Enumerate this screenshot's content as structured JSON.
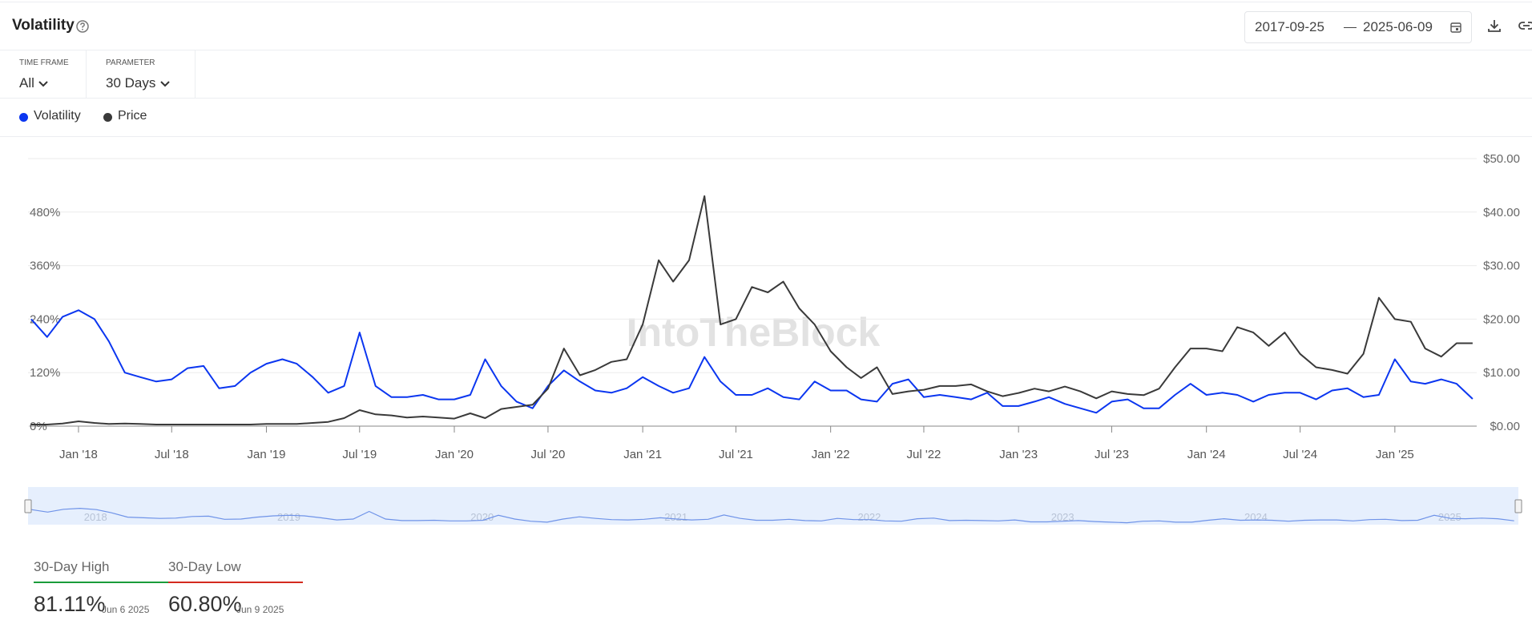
{
  "header": {
    "title": "Volatility"
  },
  "filters": [
    {
      "label": "TIME FRAME",
      "value": "All"
    },
    {
      "label": "PARAMETER",
      "value": "30 Days"
    }
  ],
  "watermark": "IntoTheBlock",
  "navigator": {
    "labels": [
      "2018",
      "2019",
      "2020",
      "2021",
      "2022",
      "2023",
      "2024",
      "2025"
    ]
  },
  "stats": [
    {
      "label": "30-Day High",
      "value": "81.11%",
      "date": "Jun 6 2025",
      "color": "#1a9c3a"
    },
    {
      "label": "30-Day Low",
      "value": "60.80%",
      "date": "Jun 9 2025",
      "color": "#d42a1e"
    }
  ],
  "chart_data": {
    "type": "line",
    "xlim": [
      "2017-09-25",
      "2025-06-09"
    ],
    "xticks": [
      {
        "value": "2018-01",
        "label": "Jan '18"
      },
      {
        "value": "2018-07",
        "label": "Jul '18"
      },
      {
        "value": "2019-01",
        "label": "Jan '19"
      },
      {
        "value": "2019-07",
        "label": "Jul '19"
      },
      {
        "value": "2020-01",
        "label": "Jan '20"
      },
      {
        "value": "2020-07",
        "label": "Jul '20"
      },
      {
        "value": "2021-01",
        "label": "Jan '21"
      },
      {
        "value": "2021-07",
        "label": "Jul '21"
      },
      {
        "value": "2022-01",
        "label": "Jan '22"
      },
      {
        "value": "2022-07",
        "label": "Jul '22"
      },
      {
        "value": "2023-01",
        "label": "Jan '23"
      },
      {
        "value": "2023-07",
        "label": "Jul '23"
      },
      {
        "value": "2024-01",
        "label": "Jan '24"
      },
      {
        "value": "2024-07",
        "label": "Jul '24"
      },
      {
        "value": "2025-01",
        "label": "Jan '25"
      }
    ],
    "ylim": [
      0,
      600
    ],
    "yticks": [
      {
        "value": 0,
        "label": "0%"
      },
      {
        "value": 120,
        "label": "120%"
      },
      {
        "value": 240,
        "label": "240%"
      },
      {
        "value": 360,
        "label": "360%"
      },
      {
        "value": 480,
        "label": "480%"
      }
    ],
    "y2lim": [
      0,
      50
    ],
    "y2ticks": [
      {
        "value": 0,
        "label": "$0.00"
      },
      {
        "value": 10,
        "label": "$10.00"
      },
      {
        "value": 20,
        "label": "$20.00"
      },
      {
        "value": 30,
        "label": "$30.00"
      },
      {
        "value": 40,
        "label": "$40.00"
      },
      {
        "value": 50,
        "label": "$50.00"
      }
    ],
    "grid": true,
    "x": [
      "2017-10",
      "2017-11",
      "2017-12",
      "2018-01",
      "2018-02",
      "2018-03",
      "2018-04",
      "2018-05",
      "2018-06",
      "2018-07",
      "2018-08",
      "2018-09",
      "2018-10",
      "2018-11",
      "2018-12",
      "2019-01",
      "2019-02",
      "2019-03",
      "2019-04",
      "2019-05",
      "2019-06",
      "2019-07",
      "2019-08",
      "2019-09",
      "2019-10",
      "2019-11",
      "2019-12",
      "2020-01",
      "2020-02",
      "2020-03",
      "2020-04",
      "2020-05",
      "2020-06",
      "2020-07",
      "2020-08",
      "2020-09",
      "2020-10",
      "2020-11",
      "2020-12",
      "2021-01",
      "2021-02",
      "2021-03",
      "2021-04",
      "2021-05",
      "2021-06",
      "2021-07",
      "2021-08",
      "2021-09",
      "2021-10",
      "2021-11",
      "2021-12",
      "2022-01",
      "2022-02",
      "2022-03",
      "2022-04",
      "2022-05",
      "2022-06",
      "2022-07",
      "2022-08",
      "2022-09",
      "2022-10",
      "2022-11",
      "2022-12",
      "2023-01",
      "2023-02",
      "2023-03",
      "2023-04",
      "2023-05",
      "2023-06",
      "2023-07",
      "2023-08",
      "2023-09",
      "2023-10",
      "2023-11",
      "2023-12",
      "2024-01",
      "2024-02",
      "2024-03",
      "2024-04",
      "2024-05",
      "2024-06",
      "2024-07",
      "2024-08",
      "2024-09",
      "2024-10",
      "2024-11",
      "2024-12",
      "2025-01",
      "2025-02",
      "2025-03",
      "2025-04",
      "2025-05",
      "2025-06"
    ],
    "series": [
      {
        "name": "Volatility",
        "color": "#0b36f0",
        "values": [
          240,
          200,
          245,
          260,
          240,
          190,
          120,
          110,
          100,
          105,
          130,
          135,
          85,
          90,
          120,
          140,
          150,
          140,
          110,
          75,
          90,
          210,
          90,
          65,
          65,
          70,
          60,
          60,
          70,
          150,
          90,
          55,
          40,
          90,
          125,
          100,
          80,
          75,
          85,
          110,
          90,
          75,
          85,
          155,
          100,
          70,
          70,
          85,
          65,
          60,
          100,
          80,
          80,
          60,
          55,
          95,
          105,
          65,
          70,
          65,
          60,
          75,
          45,
          45,
          55,
          65,
          50,
          40,
          30,
          55,
          60,
          40,
          40,
          70,
          95,
          70,
          75,
          70,
          55,
          70,
          75,
          75,
          60,
          80,
          85,
          65,
          70,
          150,
          100,
          95,
          105,
          95,
          61
        ]
      },
      {
        "name": "Price",
        "color": "#3a3a3a",
        "axis": "y2",
        "values": [
          0.3,
          0.3,
          0.5,
          0.9,
          0.6,
          0.4,
          0.5,
          0.4,
          0.3,
          0.3,
          0.3,
          0.3,
          0.3,
          0.3,
          0.3,
          0.4,
          0.4,
          0.4,
          0.6,
          0.8,
          1.5,
          3.0,
          2.2,
          2.0,
          1.6,
          1.8,
          1.6,
          1.4,
          2.4,
          1.5,
          3.2,
          3.6,
          4.0,
          7.0,
          14.5,
          9.5,
          10.5,
          12.0,
          12.5,
          19,
          31,
          27,
          31,
          43,
          19,
          20,
          26,
          25,
          27,
          22,
          19,
          14,
          11,
          9,
          11,
          6,
          6.5,
          6.8,
          7.5,
          7.5,
          7.8,
          6.5,
          5.6,
          6.2,
          7.0,
          6.5,
          7.4,
          6.5,
          5.2,
          6.5,
          6.0,
          5.8,
          7.0,
          11.0,
          14.5,
          14.5,
          14.0,
          18.5,
          17.5,
          15,
          17.5,
          13.5,
          11.0,
          10.5,
          9.8,
          13.5,
          24,
          20,
          19.5,
          14.5,
          13.0,
          15.5,
          15.5
        ]
      }
    ]
  }
}
